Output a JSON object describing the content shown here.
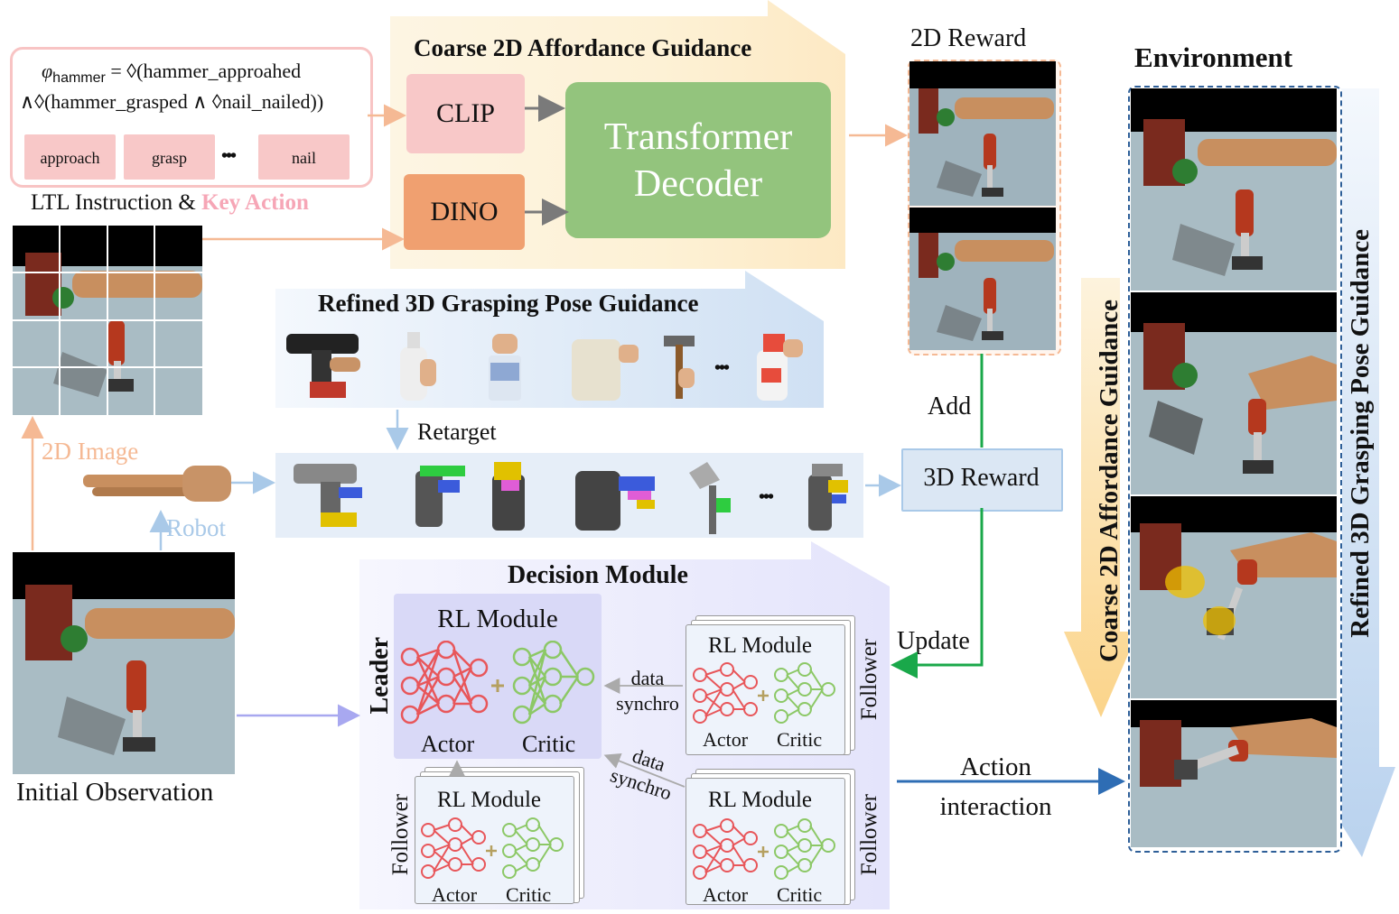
{
  "ltl": {
    "formula_line1": "φhammer = ◊(hammer_approahed",
    "formula_phi": "φ",
    "formula_sub": "hammer",
    "formula_rest1": " = ◊(hammer_approahed",
    "formula_line2": "∧◊(hammer_grasped ∧ ◊nail_nailed))",
    "actions": [
      "approach",
      "grasp",
      "nail"
    ],
    "ellipsis": "•••",
    "caption_left": "LTL Instruction",
    "caption_amp": "&",
    "caption_right": "Key Action"
  },
  "coarse": {
    "title": "Coarse 2D Affordance Guidance",
    "clip": "CLIP",
    "dino": "DINO",
    "decoder": "Transformer Decoder"
  },
  "reward2d": {
    "title": "2D Reward"
  },
  "refined": {
    "title": "Refined 3D Grasping Pose Guidance",
    "ellipsis": "•••",
    "retarget": "Retarget"
  },
  "reward3d": {
    "label": "3D Reward",
    "add": "Add",
    "update": "Update"
  },
  "left": {
    "image2d": "2D Image",
    "robot": "Robot",
    "initial_obs": "Initial Observation"
  },
  "decision": {
    "title": "Decision Module",
    "leader": "Leader",
    "follower": "Follower",
    "rl_module": "RL Module",
    "actor": "Actor",
    "critic": "Critic",
    "sync_top_1": "data",
    "sync_top_2": "synchro",
    "sync_bot_1": "data",
    "sync_bot_2": "synchro"
  },
  "action": {
    "line1": "Action",
    "line2": "interaction"
  },
  "environment": {
    "title": "Environment",
    "coarse_vertical": "Coarse 2D Affordance Guidance",
    "refined_vertical": "Refined 3D Grasping Pose Guidance"
  },
  "colors": {
    "peach": "#f5b994",
    "pink_box": "#f8c8c8",
    "dino_orange": "#f0a070",
    "decoder_green": "#93c47d",
    "light_blue": "#a9c9e8",
    "green_arrow": "#1aa84a",
    "blue_arrow": "#2e6db4",
    "lavender": "#a8a8f0",
    "key_action_pink": "#f6a6b6",
    "actor_red": "#e8565a",
    "critic_green": "#8cc866"
  }
}
